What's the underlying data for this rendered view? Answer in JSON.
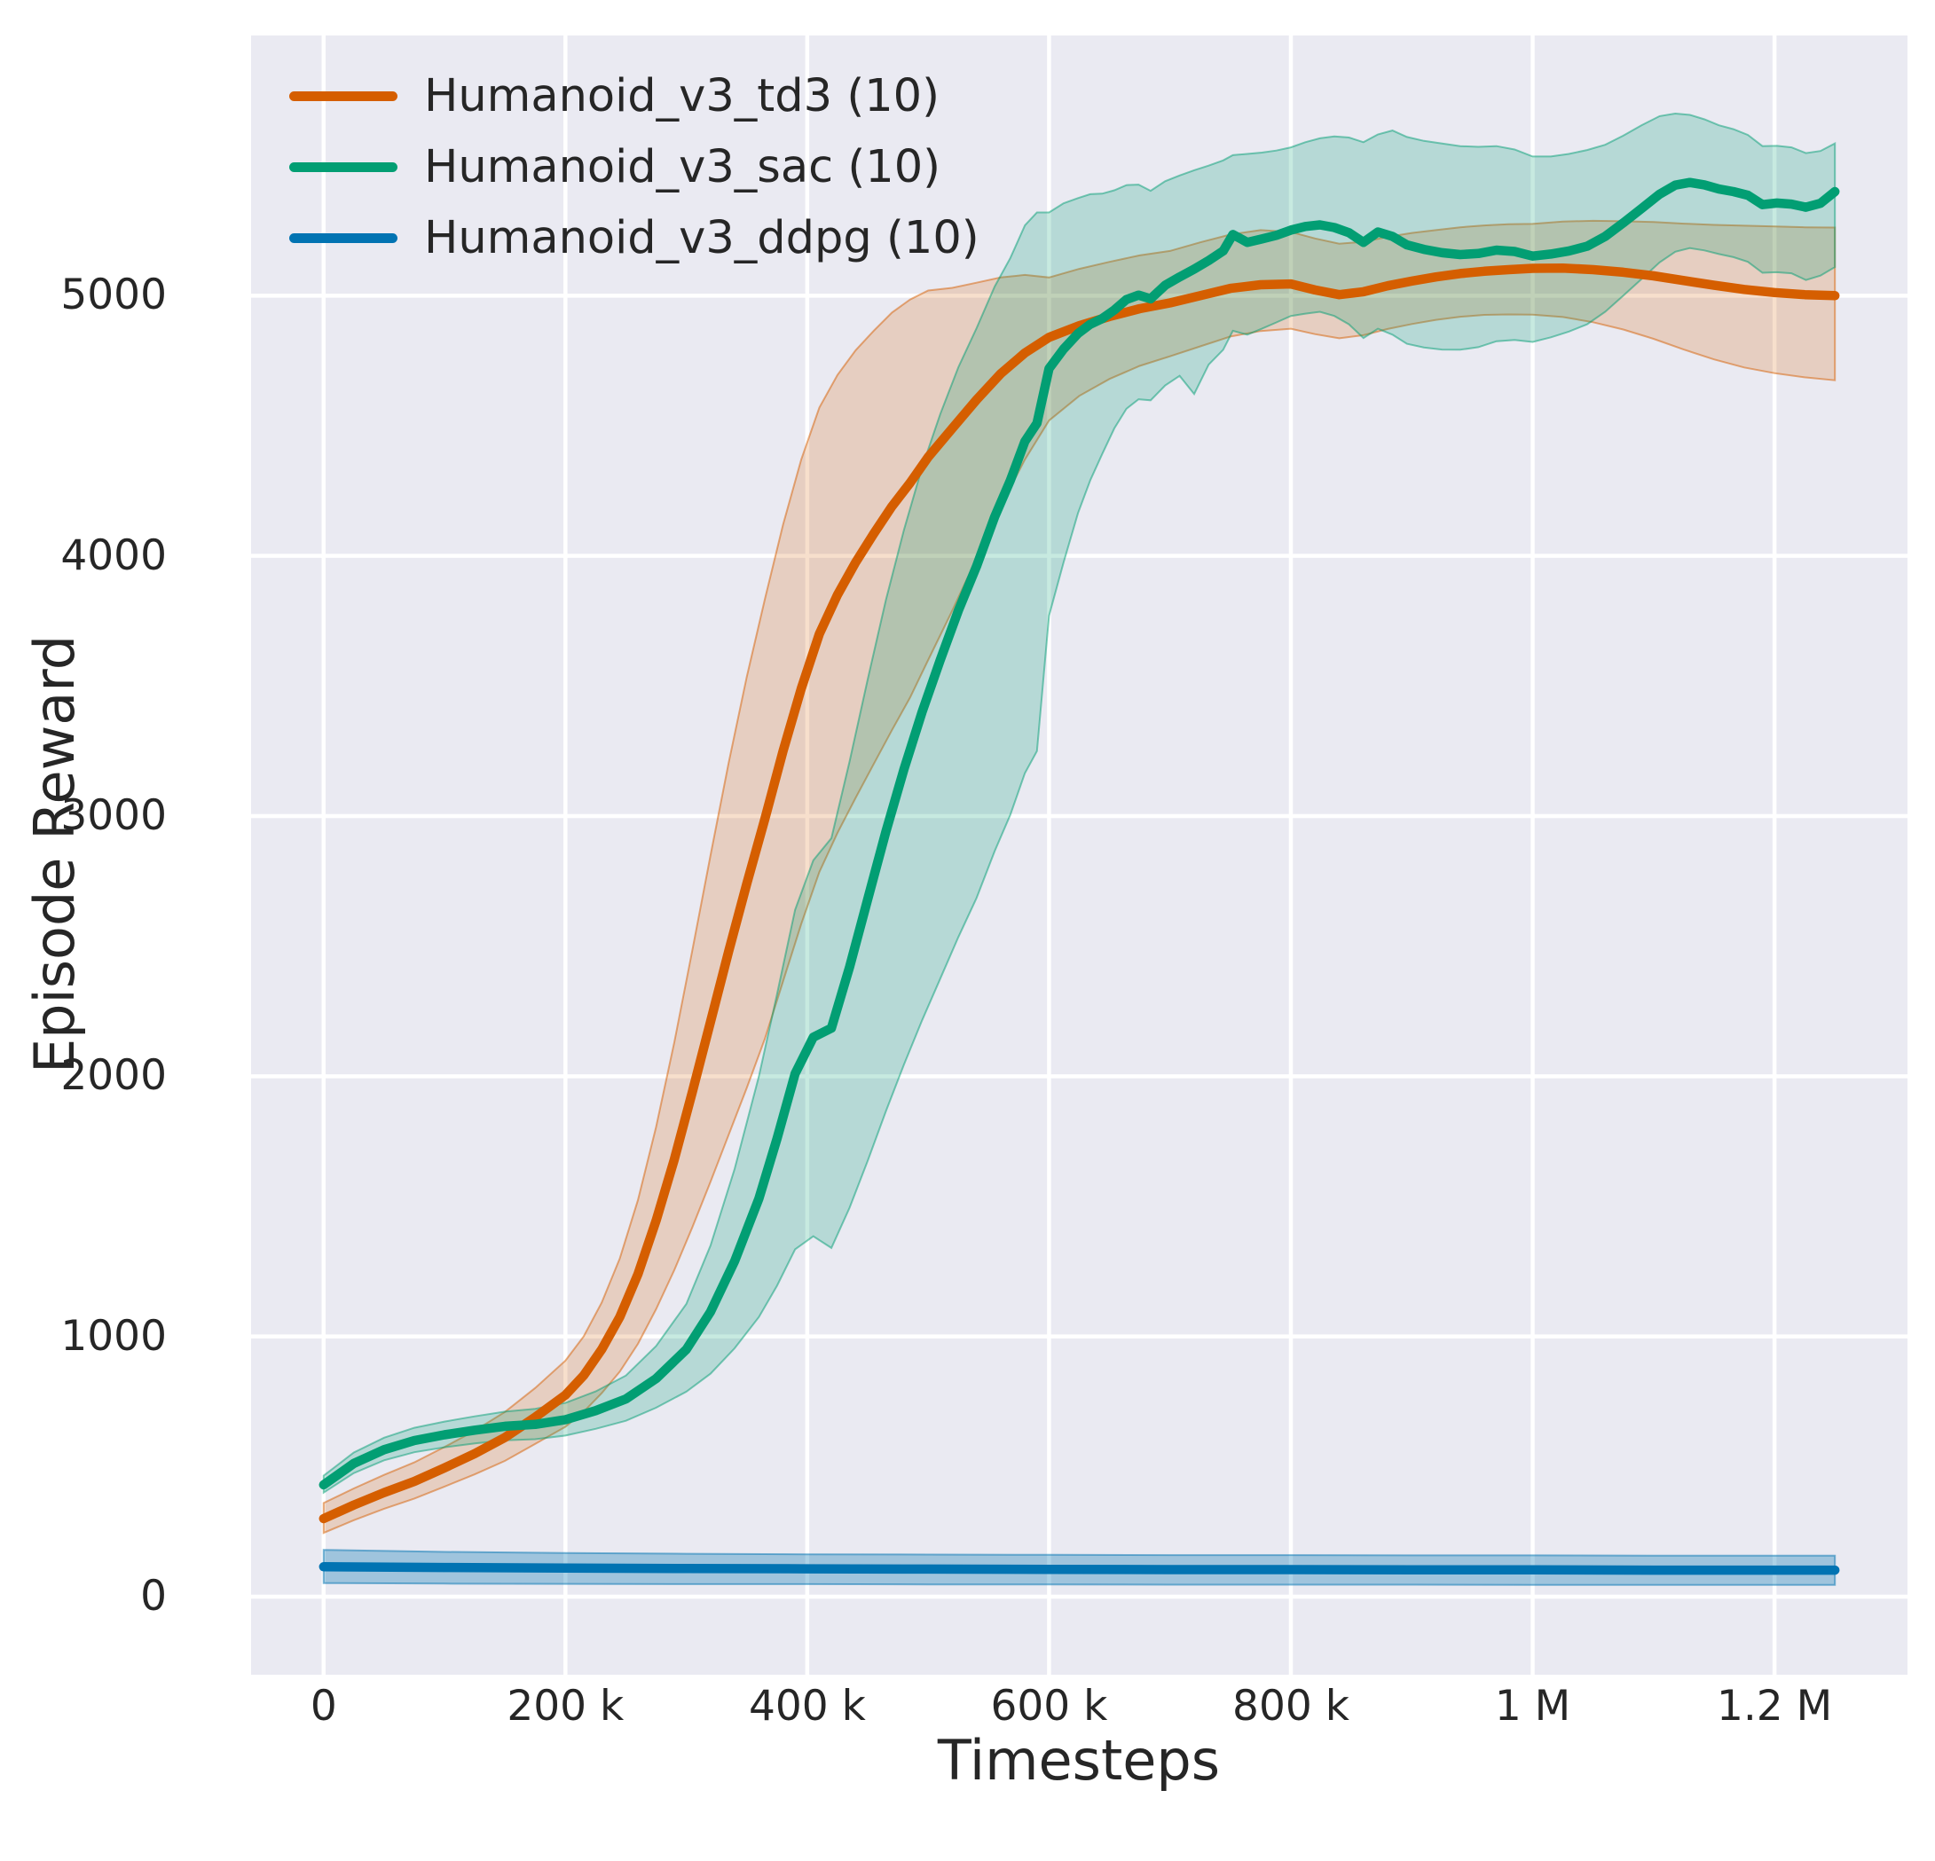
{
  "axes": {
    "x": {
      "label": "Timesteps",
      "ticks": [
        {
          "v": 0,
          "label": "0"
        },
        {
          "v": 200000,
          "label": "200 k"
        },
        {
          "v": 400000,
          "label": "400 k"
        },
        {
          "v": 600000,
          "label": "600 k"
        },
        {
          "v": 800000,
          "label": "800 k"
        },
        {
          "v": 1000000,
          "label": "1 M"
        },
        {
          "v": 1200000,
          "label": "1.2 M"
        }
      ]
    },
    "y": {
      "label": "Episode Reward",
      "ticks": [
        {
          "v": 0,
          "label": "0"
        },
        {
          "v": 1000,
          "label": "1000"
        },
        {
          "v": 2000,
          "label": "2000"
        },
        {
          "v": 3000,
          "label": "3000"
        },
        {
          "v": 4000,
          "label": "4000"
        },
        {
          "v": 5000,
          "label": "5000"
        }
      ]
    }
  },
  "legend": {
    "items": [
      {
        "label": "Humanoid_v3_td3 (10)",
        "color": "#d55e00"
      },
      {
        "label": "Humanoid_v3_sac (10)",
        "color": "#029e73"
      },
      {
        "label": "Humanoid_v3_ddpg (10)",
        "color": "#0173b2"
      }
    ]
  },
  "chart_data": {
    "type": "line",
    "title": "",
    "xlabel": "Timesteps",
    "ylabel": "Episode Reward",
    "xlim": [
      -60000,
      1310000
    ],
    "ylim": [
      -300,
      6000
    ],
    "grid": true,
    "legend_position": "upper-left",
    "plot_bg": "#eaeaf2",
    "grid_color": "#ffffff",
    "text_color": "#262626",
    "x_unit": 1000,
    "series": [
      {
        "name": "Humanoid_v3_td3 (10)",
        "color": "#d55e00",
        "band_opacity": 0.2,
        "x": [
          0,
          25,
          50,
          75,
          100,
          125,
          150,
          175,
          200,
          215,
          230,
          245,
          260,
          275,
          290,
          305,
          320,
          335,
          350,
          365,
          380,
          395,
          410,
          425,
          440,
          455,
          470,
          485,
          500,
          520,
          540,
          560,
          580,
          600,
          625,
          650,
          675,
          700,
          725,
          750,
          775,
          800,
          820,
          840,
          860,
          880,
          900,
          920,
          940,
          960,
          980,
          1000,
          1025,
          1050,
          1075,
          1100,
          1125,
          1150,
          1175,
          1200,
          1225,
          1250
        ],
        "mean": [
          300,
          352,
          400,
          443,
          495,
          550,
          612,
          690,
          775,
          850,
          950,
          1075,
          1240,
          1445,
          1680,
          1940,
          2210,
          2480,
          2740,
          2990,
          3250,
          3490,
          3700,
          3850,
          3975,
          4085,
          4190,
          4280,
          4380,
          4490,
          4600,
          4700,
          4780,
          4840,
          4885,
          4920,
          4950,
          4972,
          5000,
          5028,
          5042,
          5045,
          5022,
          5004,
          5015,
          5038,
          5056,
          5072,
          5085,
          5094,
          5100,
          5105,
          5106,
          5100,
          5090,
          5076,
          5058,
          5040,
          5024,
          5012,
          5004,
          5000
        ],
        "upper": [
          360,
          416,
          468,
          516,
          575,
          638,
          710,
          802,
          907,
          1000,
          1130,
          1300,
          1525,
          1805,
          2130,
          2485,
          2850,
          3205,
          3535,
          3835,
          4120,
          4370,
          4570,
          4695,
          4790,
          4865,
          4935,
          4985,
          5020,
          5030,
          5050,
          5070,
          5080,
          5070,
          5103,
          5130,
          5155,
          5172,
          5205,
          5235,
          5252,
          5245,
          5220,
          5200,
          5207,
          5226,
          5241,
          5252,
          5263,
          5270,
          5275,
          5276,
          5285,
          5288,
          5286,
          5283,
          5277,
          5272,
          5269,
          5266,
          5263,
          5262
        ],
        "lower": [
          245,
          294,
          338,
          377,
          423,
          470,
          522,
          587,
          653,
          710,
          782,
          865,
          972,
          1105,
          1255,
          1420,
          1595,
          1775,
          1955,
          2145,
          2365,
          2585,
          2785,
          2935,
          3070,
          3200,
          3330,
          3455,
          3600,
          3790,
          3990,
          4190,
          4370,
          4520,
          4615,
          4680,
          4730,
          4767,
          4805,
          4843,
          4864,
          4873,
          4852,
          4836,
          4848,
          4872,
          4891,
          4907,
          4919,
          4926,
          4928,
          4927,
          4918,
          4898,
          4870,
          4834,
          4793,
          4755,
          4724,
          4702,
          4686,
          4675
        ]
      },
      {
        "name": "Humanoid_v3_sac (10)",
        "color": "#029e73",
        "band_opacity": 0.22,
        "x": [
          0,
          25,
          50,
          75,
          100,
          125,
          150,
          175,
          200,
          225,
          250,
          275,
          300,
          320,
          340,
          360,
          375,
          390,
          405,
          420,
          435,
          450,
          465,
          480,
          495,
          510,
          525,
          540,
          555,
          568,
          580,
          590,
          600,
          612,
          624,
          634,
          644,
          654,
          664,
          674,
          684,
          696,
          708,
          720,
          732,
          744,
          752,
          764,
          776,
          788,
          800,
          812,
          824,
          836,
          848,
          860,
          872,
          884,
          896,
          910,
          925,
          940,
          955,
          970,
          985,
          1000,
          1015,
          1030,
          1045,
          1060,
          1075,
          1090,
          1105,
          1118,
          1130,
          1142,
          1154,
          1166,
          1178,
          1190,
          1202,
          1214,
          1226,
          1238,
          1250
        ],
        "mean": [
          430,
          512,
          565,
          600,
          622,
          640,
          655,
          662,
          680,
          715,
          760,
          838,
          950,
          1095,
          1290,
          1530,
          1760,
          2010,
          2150,
          2185,
          2420,
          2680,
          2940,
          3180,
          3400,
          3600,
          3790,
          3960,
          4150,
          4290,
          4440,
          4510,
          4720,
          4795,
          4855,
          4890,
          4912,
          4945,
          4985,
          5002,
          4988,
          5040,
          5072,
          5102,
          5135,
          5172,
          5235,
          5205,
          5218,
          5232,
          5252,
          5266,
          5272,
          5262,
          5242,
          5205,
          5245,
          5228,
          5195,
          5178,
          5165,
          5158,
          5162,
          5175,
          5170,
          5152,
          5160,
          5172,
          5190,
          5228,
          5280,
          5335,
          5390,
          5425,
          5435,
          5426,
          5410,
          5400,
          5386,
          5350,
          5356,
          5352,
          5340,
          5355,
          5400
        ],
        "upper": [
          465,
          554,
          611,
          649,
          673,
          693,
          711,
          722,
          745,
          789,
          850,
          963,
          1125,
          1350,
          1645,
          2000,
          2315,
          2640,
          2830,
          2915,
          3210,
          3525,
          3830,
          4100,
          4340,
          4545,
          4725,
          4875,
          5035,
          5145,
          5270,
          5320,
          5320,
          5355,
          5375,
          5390,
          5392,
          5405,
          5425,
          5427,
          5403,
          5440,
          5462,
          5482,
          5500,
          5520,
          5540,
          5545,
          5550,
          5558,
          5570,
          5590,
          5605,
          5612,
          5608,
          5590,
          5620,
          5635,
          5610,
          5595,
          5585,
          5575,
          5572,
          5575,
          5562,
          5535,
          5535,
          5545,
          5560,
          5580,
          5615,
          5655,
          5690,
          5700,
          5695,
          5678,
          5655,
          5640,
          5618,
          5575,
          5576,
          5570,
          5548,
          5556,
          5585
        ],
        "lower": [
          400,
          475,
          524,
          555,
          574,
          589,
          601,
          605,
          619,
          645,
          676,
          726,
          788,
          857,
          955,
          1075,
          1195,
          1335,
          1385,
          1340,
          1495,
          1675,
          1865,
          2045,
          2215,
          2375,
          2535,
          2685,
          2865,
          3005,
          3165,
          3250,
          3770,
          3975,
          4165,
          4290,
          4392,
          4490,
          4565,
          4602,
          4598,
          4655,
          4692,
          4622,
          4735,
          4792,
          4865,
          4850,
          4873,
          4897,
          4922,
          4931,
          4938,
          4922,
          4890,
          4837,
          4873,
          4850,
          4815,
          4801,
          4793,
          4792,
          4802,
          4825,
          4830,
          4822,
          4840,
          4862,
          4890,
          4938,
          5000,
          5064,
          5128,
          5169,
          5183,
          5174,
          5160,
          5148,
          5130,
          5088,
          5090,
          5086,
          5060,
          5077,
          5110
        ]
      },
      {
        "name": "Humanoid_v3_ddpg (10)",
        "color": "#0173b2",
        "band_opacity": 0.32,
        "x": [
          0,
          100,
          200,
          300,
          400,
          500,
          600,
          700,
          800,
          900,
          1000,
          1100,
          1200,
          1250
        ],
        "mean": [
          115,
          112,
          110,
          108,
          107,
          106,
          105,
          104,
          104,
          103,
          103,
          102,
          102,
          102
        ],
        "upper": [
          180,
          172,
          168,
          165,
          163,
          162,
          161,
          160,
          160,
          159,
          159,
          158,
          158,
          158
        ],
        "lower": [
          52,
          50,
          49,
          48,
          48,
          47,
          47,
          46,
          46,
          46,
          45,
          45,
          45,
          45
        ]
      }
    ]
  }
}
